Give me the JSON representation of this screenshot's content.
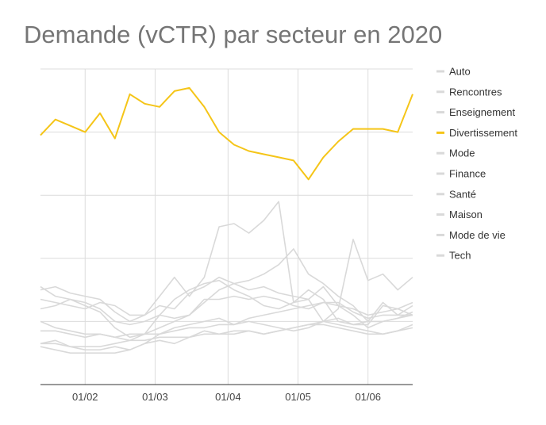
{
  "chart_data": {
    "type": "line",
    "title": "Demande (vCTR) par secteur en 2020",
    "xlabel": "",
    "ylabel": "",
    "grid": true,
    "legend_position": "right",
    "x_ticks": [
      "01/02",
      "01/03",
      "01/04",
      "01/05",
      "01/06"
    ],
    "x_tick_weeks": [
      3,
      7.7,
      12.6,
      17.3,
      22.0
    ],
    "x": [
      0,
      1,
      2,
      3,
      4,
      5,
      6,
      7,
      8,
      9,
      10,
      11,
      12,
      13,
      14,
      15,
      16,
      17,
      18,
      19,
      20,
      21,
      22,
      23,
      24,
      25
    ],
    "ylim": [
      0,
      100
    ],
    "highlight_color": "#f5c518",
    "muted_color": "#d9d9d9",
    "series": [
      {
        "name": "Auto",
        "values": [
          17,
          17,
          16,
          15,
          16,
          15,
          16,
          16,
          16,
          17,
          18,
          18,
          19,
          19,
          21,
          22,
          23,
          24,
          25,
          26,
          25,
          24,
          22,
          23,
          24,
          22
        ]
      },
      {
        "name": "Rencontres",
        "values": [
          30,
          31,
          29,
          28,
          27,
          23,
          20,
          22,
          25,
          24,
          29,
          31,
          34,
          32,
          30,
          31,
          29,
          28,
          27,
          31,
          25,
          22,
          18,
          20,
          21,
          23
        ]
      },
      {
        "name": "Enseignement",
        "values": [
          13,
          14,
          12,
          11,
          11,
          12,
          11,
          13,
          16,
          18,
          19,
          20,
          21,
          19,
          20,
          19,
          18,
          17,
          18,
          20,
          19,
          18,
          17,
          16,
          17,
          19
        ]
      },
      {
        "name": "Divertissement",
        "values": [
          79,
          84,
          82,
          80,
          86,
          78,
          92,
          89,
          88,
          93,
          94,
          88,
          80,
          76,
          74,
          73,
          72,
          71,
          65,
          72,
          77,
          81,
          81,
          81,
          80,
          92
        ]
      },
      {
        "name": "Mode",
        "values": [
          12,
          11,
          10,
          10,
          10,
          10,
          11,
          13,
          14,
          13,
          15,
          16,
          16,
          17,
          17,
          16,
          17,
          18,
          19,
          20,
          21,
          19,
          20,
          20,
          21,
          22
        ]
      },
      {
        "name": "Finance",
        "values": [
          24,
          25,
          27,
          26,
          24,
          20,
          19,
          20,
          22,
          21,
          22,
          27,
          27,
          28,
          27,
          28,
          27,
          25,
          24,
          26,
          26,
          23,
          21,
          22,
          22,
          22
        ]
      },
      {
        "name": "Santé",
        "values": [
          31,
          28,
          27,
          25,
          23,
          18,
          15,
          16,
          22,
          27,
          30,
          32,
          33,
          30,
          28,
          25,
          24,
          26,
          30,
          27,
          20,
          19,
          19,
          25,
          24,
          26
        ]
      },
      {
        "name": "Maison",
        "values": [
          20,
          18,
          17,
          16,
          16,
          15,
          14,
          14,
          15,
          15,
          15,
          17,
          16,
          16,
          17,
          16,
          17,
          18,
          19,
          19,
          18,
          17,
          16,
          16,
          17,
          18
        ]
      },
      {
        "name": "Mode de vie",
        "values": [
          13,
          13,
          12,
          12,
          12,
          13,
          14,
          16,
          18,
          20,
          22,
          26,
          30,
          32,
          33,
          35,
          38,
          43,
          35,
          32,
          28,
          25,
          20,
          26,
          22,
          25
        ]
      },
      {
        "name": "Tech",
        "values": [
          27,
          26,
          25,
          24,
          26,
          25,
          22,
          22,
          28,
          34,
          28,
          34,
          50,
          51,
          48,
          52,
          58,
          26,
          27,
          20,
          24,
          46,
          33,
          35,
          30,
          34
        ]
      }
    ]
  }
}
